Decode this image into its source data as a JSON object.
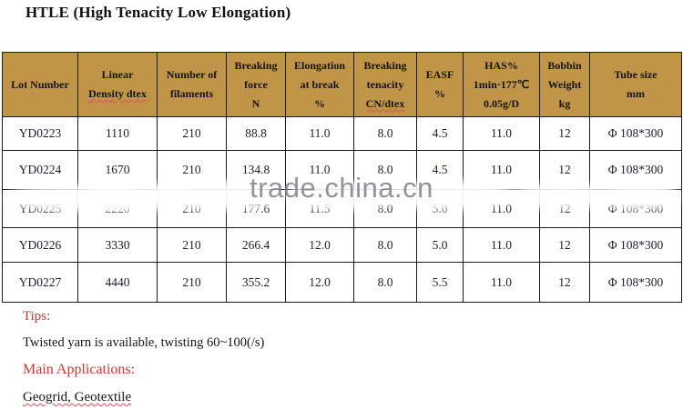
{
  "title": "HTLE (High Tenacity Low Elongation)",
  "watermark": {
    "text": "trade.china.cn"
  },
  "table": {
    "columns": [
      {
        "key": "lot-number",
        "lines": [
          "Lot Number"
        ]
      },
      {
        "key": "linear-density",
        "lines": [
          "Linear",
          "Density dtex"
        ],
        "squiggle_line": 1
      },
      {
        "key": "filaments",
        "lines": [
          "Number of",
          "filaments"
        ]
      },
      {
        "key": "breaking-force",
        "lines": [
          "Breaking",
          "force",
          "N"
        ]
      },
      {
        "key": "elongation",
        "lines": [
          "Elongation",
          "at break",
          "%"
        ]
      },
      {
        "key": "breaking-tenacity",
        "lines": [
          "Breaking",
          "tenacity",
          "CN/dtex"
        ],
        "squiggle_line": 2
      },
      {
        "key": "easf",
        "lines": [
          "EASF",
          "%"
        ]
      },
      {
        "key": "has",
        "lines": [
          "HAS%",
          "1min·177℃",
          "0.05g/D"
        ]
      },
      {
        "key": "bobbin-weight",
        "lines": [
          "Bobbin",
          "Weight",
          "kg"
        ]
      },
      {
        "key": "tube-size",
        "lines": [
          "Tube size",
          "mm"
        ]
      }
    ],
    "rows": [
      [
        "YD0223",
        "1110",
        "210",
        "88.8",
        "11.0",
        "8.0",
        "4.5",
        "11.0",
        "12",
        "Φ 108*300"
      ],
      [
        "YD0224",
        "1670",
        "210",
        "134.8",
        "11.0",
        "8.0",
        "4.5",
        "11.0",
        "12",
        "Φ 108*300"
      ],
      [
        "YD0225",
        "2220",
        "210",
        "177.6",
        "11.5",
        "8.0",
        "5.0",
        "11.0",
        "12",
        "Φ 108*300"
      ],
      [
        "YD0226",
        "3330",
        "210",
        "266.4",
        "12.0",
        "8.0",
        "5.0",
        "11.0",
        "12",
        "Φ 108*300"
      ],
      [
        "YD0227",
        "4440",
        "210",
        "355.2",
        "12.0",
        "8.0",
        "5.5",
        "11.0",
        "12",
        "Φ 108*300"
      ]
    ]
  },
  "notes": {
    "tips_label": "Tips:",
    "tips_text": "Twisted yarn is available, twisting 60~100(/s)",
    "applications_label": "Main Applications:",
    "applications_text": "Geogrid, Geotextile"
  },
  "colors": {
    "header_bg": "#c09548",
    "accent_red": "#c63a31",
    "watermark_gray": "#7d838b",
    "border": "#1c1c1c"
  }
}
